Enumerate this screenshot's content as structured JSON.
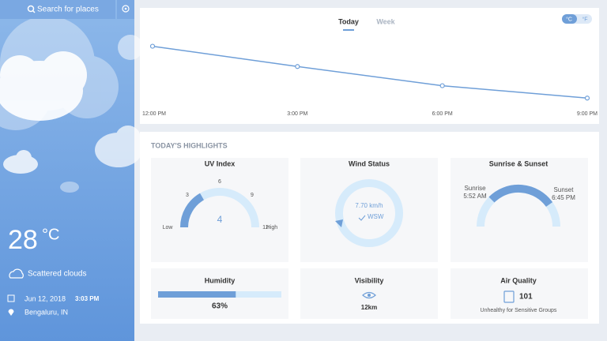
{
  "sidebar": {
    "search_placeholder": "Search for places",
    "temperature": "28",
    "temperature_unit": "°C",
    "condition": "Scattered clouds",
    "date": "Jun 12, 2018",
    "time": "3:03 PM",
    "location": "Bengaluru, IN"
  },
  "tabs": [
    "Today",
    "Week"
  ],
  "units": [
    "°C",
    "°F"
  ],
  "chart_data": {
    "type": "line",
    "categories": [
      "12:00 PM",
      "3:00 PM",
      "6:00 PM",
      "9:00 PM"
    ],
    "series": [
      {
        "color": "#6f9fd8",
        "values": [
          29.7,
          27.9,
          26.2,
          25.1
        ]
      }
    ],
    "ylim": [
      24,
      31
    ]
  },
  "highlights": {
    "title": "TODAY'S HIGHLIGHTS",
    "uv_index": {
      "title": "UV Index",
      "value": 4,
      "range": [
        0,
        12
      ],
      "ticks": [
        3,
        6,
        9,
        12
      ],
      "low": "Low",
      "high": "High"
    },
    "wind": {
      "title": "Wind Status",
      "speed": "7.70 km/h",
      "direction": "WSW"
    },
    "sun": {
      "title": "Sunrise & Sunset",
      "sunrise_label": "Sunrise",
      "sunrise": "5:52 AM",
      "sunset_label": "Sunset",
      "sunset": "6:45 PM"
    },
    "humidity": {
      "title": "Humidity",
      "value": 63,
      "label": "63%"
    },
    "visibility": {
      "title": "Visibility",
      "value": "12km"
    },
    "air_quality": {
      "title": "Air Quality",
      "value": "101",
      "status": "Unhealthy for Sensitive Groups"
    }
  }
}
